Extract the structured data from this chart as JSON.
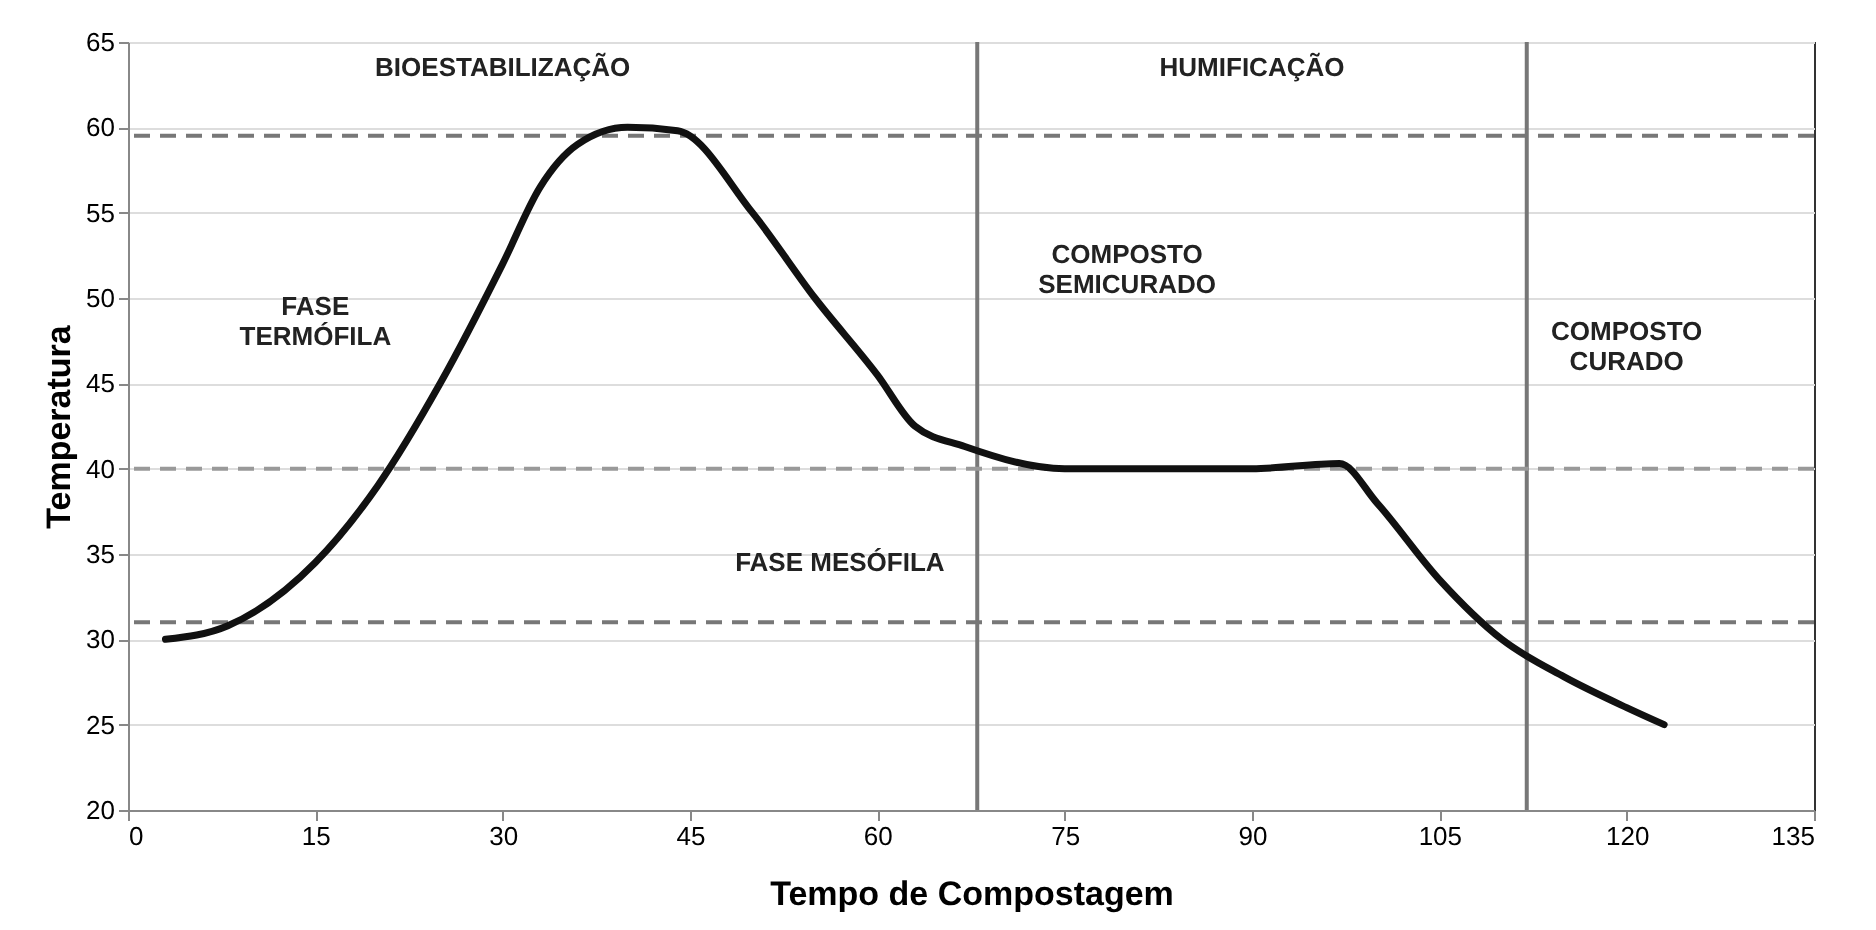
{
  "chart_data": {
    "type": "line",
    "xlabel": "Tempo de Compostagem",
    "ylabel": "Temperatura",
    "x": [
      3,
      8,
      15,
      20,
      25,
      30,
      33,
      36,
      40,
      44,
      50,
      55,
      60,
      63,
      67,
      75,
      90,
      97,
      100,
      105,
      110,
      115,
      120,
      123
    ],
    "series": [
      {
        "color": "#111111",
        "values": [
          30,
          30.8,
          34.5,
          39,
          45,
          52,
          56.5,
          59,
          60,
          59.8,
          55,
          50,
          45.5,
          42.5,
          41.3,
          40,
          40,
          40.3,
          38,
          33.5,
          30,
          27.8,
          26,
          25
        ]
      }
    ],
    "xlim": [
      0,
      135
    ],
    "xticks": [
      0,
      15,
      30,
      45,
      60,
      75,
      90,
      105,
      120,
      135
    ],
    "ylim": [
      20,
      65
    ],
    "yticks": [
      20,
      25,
      30,
      35,
      40,
      45,
      50,
      55,
      60,
      65
    ],
    "grid": "y",
    "marker": "none",
    "line_style": "solid",
    "ref_lines": [
      {
        "axis": "y",
        "value": 59.5,
        "label": null,
        "color": "#777777",
        "line_style": "dashed"
      },
      {
        "axis": "y",
        "value": 40,
        "label": null,
        "color": "#999999",
        "line_style": "dashed"
      },
      {
        "axis": "y",
        "value": 31,
        "label": null,
        "color": "#777777",
        "line_style": "dashed"
      },
      {
        "axis": "x",
        "value": 68,
        "label": null,
        "color": "#777777",
        "line_style": "solid"
      },
      {
        "axis": "x",
        "value": 112,
        "label": null,
        "color": "#777777",
        "line_style": "solid"
      }
    ],
    "annotations": [
      "BIOESTABILIZAÇÃO",
      "HUMIFICAÇÃO",
      "FASE\nTERMÓFILA",
      "COMPOSTO\nSEMICURADO",
      "FASE MESÓFILA",
      "COMPOSTO\nCURADO"
    ]
  }
}
